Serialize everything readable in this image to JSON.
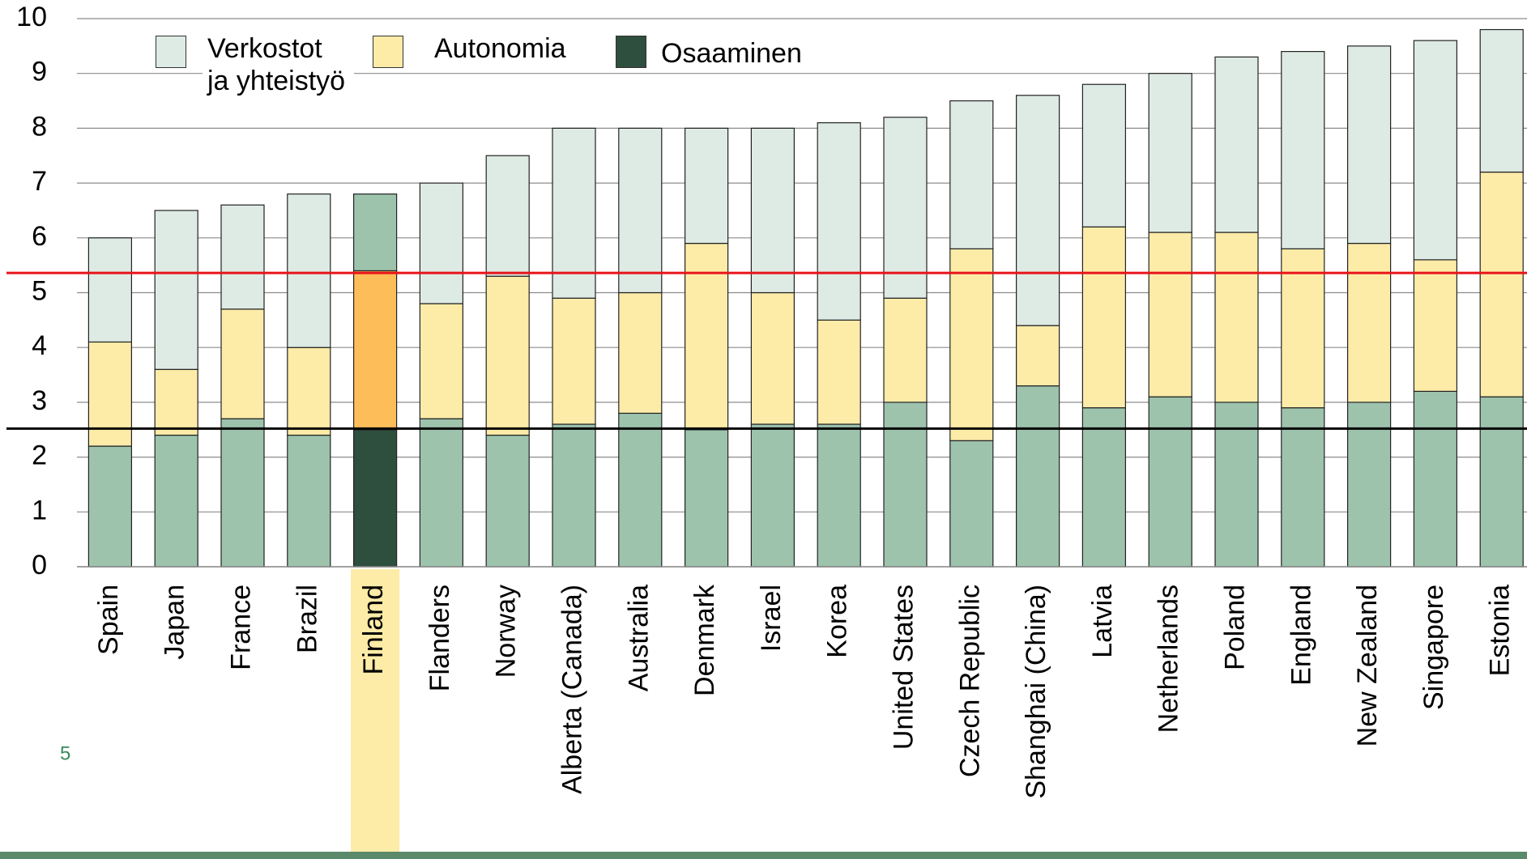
{
  "chart_data": {
    "type": "stacked_bar",
    "categories": [
      "Spain",
      "Japan",
      "France",
      "Brazil",
      "Finland",
      "Flanders",
      "Norway",
      "Alberta (Canada)",
      "Australia",
      "Denmark",
      "Israel",
      "Korea",
      "United States",
      "Czech Republic",
      "Shanghai (China)",
      "Latvia",
      "Netherlands",
      "Poland",
      "England",
      "New Zealand",
      "Singapore",
      "Estonia"
    ],
    "series": [
      {
        "name": "Osaaminen",
        "color": "#9dc3ad",
        "highlight_color": "#2f4f3e",
        "values": [
          2.2,
          2.4,
          2.7,
          2.4,
          2.5,
          2.7,
          2.4,
          2.6,
          2.8,
          2.5,
          2.6,
          2.6,
          3.0,
          2.3,
          3.3,
          2.9,
          3.1,
          3.0,
          2.9,
          3.0,
          3.2,
          3.1
        ]
      },
      {
        "name": "Autonomia",
        "color": "#fdeba8",
        "highlight_color": "#fdbe5a",
        "values": [
          1.9,
          1.2,
          2.0,
          1.6,
          2.9,
          2.1,
          2.9,
          2.3,
          2.2,
          3.4,
          2.4,
          1.9,
          1.9,
          3.5,
          1.1,
          3.3,
          3.0,
          3.1,
          2.9,
          2.9,
          2.4,
          4.1
        ]
      },
      {
        "name": "Verkostot ja yhteistyö",
        "color": "#deebe4",
        "highlight_color": "#9dc3ad",
        "values": [
          1.9,
          2.9,
          1.9,
          2.8,
          1.4,
          2.2,
          2.2,
          3.1,
          3.0,
          2.1,
          3.0,
          3.6,
          3.3,
          2.7,
          4.2,
          2.6,
          2.9,
          3.2,
          3.6,
          3.6,
          4.0,
          2.6
        ]
      }
    ],
    "highlight": "Finland",
    "highlight_label_color": "#fdeba8",
    "reference_lines": [
      {
        "value": 5.36,
        "color": "#e8141b"
      },
      {
        "value": 2.52,
        "color": "#000000"
      }
    ],
    "ylim": [
      0,
      10
    ],
    "yticks": [
      0,
      1,
      2,
      3,
      4,
      5,
      6,
      7,
      8,
      9,
      10
    ],
    "grid": true
  },
  "page_number": "5"
}
